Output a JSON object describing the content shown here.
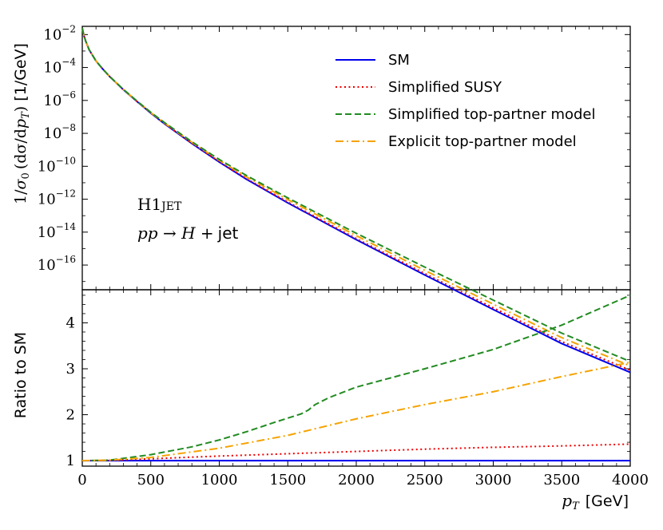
{
  "chart_data": [
    {
      "type": "line",
      "panel": "upper",
      "ylabel": "1/σ₀ (dσ/dp_T) [1/GeV]",
      "ylabel_parts": {
        "a": "1/",
        "sigma0": "σ",
        "sub0": "0",
        "mid": "(dσ/d",
        "p": "p",
        "T": "T",
        "close": ")",
        "unit": "[1/GeV]"
      },
      "yscale": "log",
      "xlim": [
        0,
        4000
      ],
      "ylim_exp": [
        -17.5,
        -1.5
      ],
      "yticks": [
        "10^-2",
        "10^-4",
        "10^-6",
        "10^-8",
        "10^-10",
        "10^-12",
        "10^-14",
        "10^-16"
      ],
      "ytick_exponents": [
        -2,
        -4,
        -6,
        -8,
        -10,
        -12,
        -14,
        -16
      ],
      "annotation": {
        "line1": "H1JET",
        "line1_a": "H1",
        "line1_b": "JET",
        "line2_pre": "pp → H +",
        "line2_post": "jet"
      },
      "legend_position": "top-right",
      "x": [
        0,
        10,
        25,
        50,
        100,
        150,
        200,
        300,
        400,
        500,
        600,
        800,
        1000,
        1200,
        1500,
        2000,
        2500,
        3000,
        3500,
        4000
      ],
      "series": [
        {
          "name": "SM",
          "color": "#0000ee",
          "style": "solid",
          "values": [
            0.025,
            0.01,
            0.004,
            0.0012,
            0.00025,
            8e-05,
            2.8e-05,
            4.5e-06,
            8.5e-07,
            1.7e-07,
            3.8e-08,
            2.4e-09,
            1.8e-10,
            1.6e-11,
            6e-13,
            3.5e-15,
            2.5e-17,
            2e-19,
            1.7e-21,
            3e-23
          ]
        },
        {
          "name": "Simplified SUSY",
          "color": "#ee0000",
          "style": "dotted",
          "values": [
            0.025,
            0.01,
            0.004,
            0.0012,
            0.00025,
            8e-05,
            2.81e-05,
            4.55e-06,
            8.65e-07,
            1.75e-07,
            3.95e-08,
            2.53e-09,
            1.93e-10,
            1.76e-11,
            6.75e-13,
            4.1e-15,
            3.05e-17,
            2.54e-19,
            2.23e-21,
            4.08e-23
          ]
        },
        {
          "name": "Simplified top-partner model",
          "color": "#228b22",
          "style": "dashed",
          "values": [
            0.025,
            0.01,
            0.004,
            0.0012,
            0.00025,
            8e-05,
            2.83e-05,
            4.7e-06,
            9.1e-07,
            1.9e-07,
            4.5e-08,
            3.1e-09,
            2.6e-10,
            2.7e-11,
            1.2e-12,
            8.5e-15,
            7.5e-17,
            7.4e-19,
            7.3e-21,
            1.38e-22
          ]
        },
        {
          "name": "Explicit top-partner model",
          "color": "#f5a300",
          "style": "dashdot",
          "values": [
            0.025,
            0.01,
            0.004,
            0.0012,
            0.00025,
            8e-05,
            2.82e-05,
            4.65e-06,
            8.95e-07,
            1.83e-07,
            4.25e-08,
            2.85e-09,
            2.3e-10,
            2.25e-11,
            9.5e-13,
            6.1e-15,
            4.75e-17,
            4.2e-19,
            3.9e-21,
            7.5e-23
          ]
        }
      ]
    },
    {
      "type": "line",
      "panel": "lower",
      "xlabel": "p_T [GeV]",
      "xlabel_parts": {
        "p": "p",
        "T": "T",
        "unit": "[GeV]"
      },
      "ylabel": "Ratio to SM",
      "xlim": [
        0,
        4000
      ],
      "ylim": [
        0.88,
        4.72
      ],
      "xticks": [
        0,
        500,
        1000,
        1500,
        2000,
        2500,
        3000,
        3500,
        4000
      ],
      "xtick_labels": [
        "0",
        "500",
        "1000",
        "1500",
        "2000",
        "2500",
        "3000",
        "3500",
        "4000"
      ],
      "yticks": [
        1,
        2,
        3,
        4
      ],
      "ytick_labels": [
        "1",
        "2",
        "3",
        "4"
      ],
      "series": [
        {
          "name": "SM",
          "color": "#0000ee",
          "style": "solid",
          "x": [
            0,
            4000
          ],
          "values": [
            1.0,
            1.0
          ]
        },
        {
          "name": "Simplified SUSY",
          "color": "#ee0000",
          "style": "dotted",
          "x": [
            0,
            200,
            500,
            1000,
            1500,
            2000,
            2500,
            3000,
            3500,
            4000
          ],
          "values": [
            1.0,
            1.005,
            1.04,
            1.1,
            1.15,
            1.2,
            1.25,
            1.29,
            1.32,
            1.36
          ]
        },
        {
          "name": "Simplified top-partner model",
          "color": "#228b22",
          "style": "dashed",
          "x": [
            0,
            200,
            500,
            800,
            1000,
            1200,
            1400,
            1600,
            1650,
            1700,
            1800,
            2000,
            2500,
            3000,
            3500,
            4000
          ],
          "values": [
            1.0,
            1.01,
            1.13,
            1.3,
            1.45,
            1.63,
            1.83,
            2.02,
            2.1,
            2.22,
            2.37,
            2.6,
            3.0,
            3.42,
            3.95,
            4.6
          ]
        },
        {
          "name": "Explicit top-partner model",
          "color": "#f5a300",
          "style": "dashdot",
          "x": [
            0,
            200,
            500,
            1000,
            1500,
            2000,
            2500,
            3000,
            3500,
            4000
          ],
          "values": [
            1.0,
            1.01,
            1.07,
            1.27,
            1.55,
            1.91,
            2.22,
            2.5,
            2.83,
            3.14
          ]
        }
      ]
    }
  ]
}
